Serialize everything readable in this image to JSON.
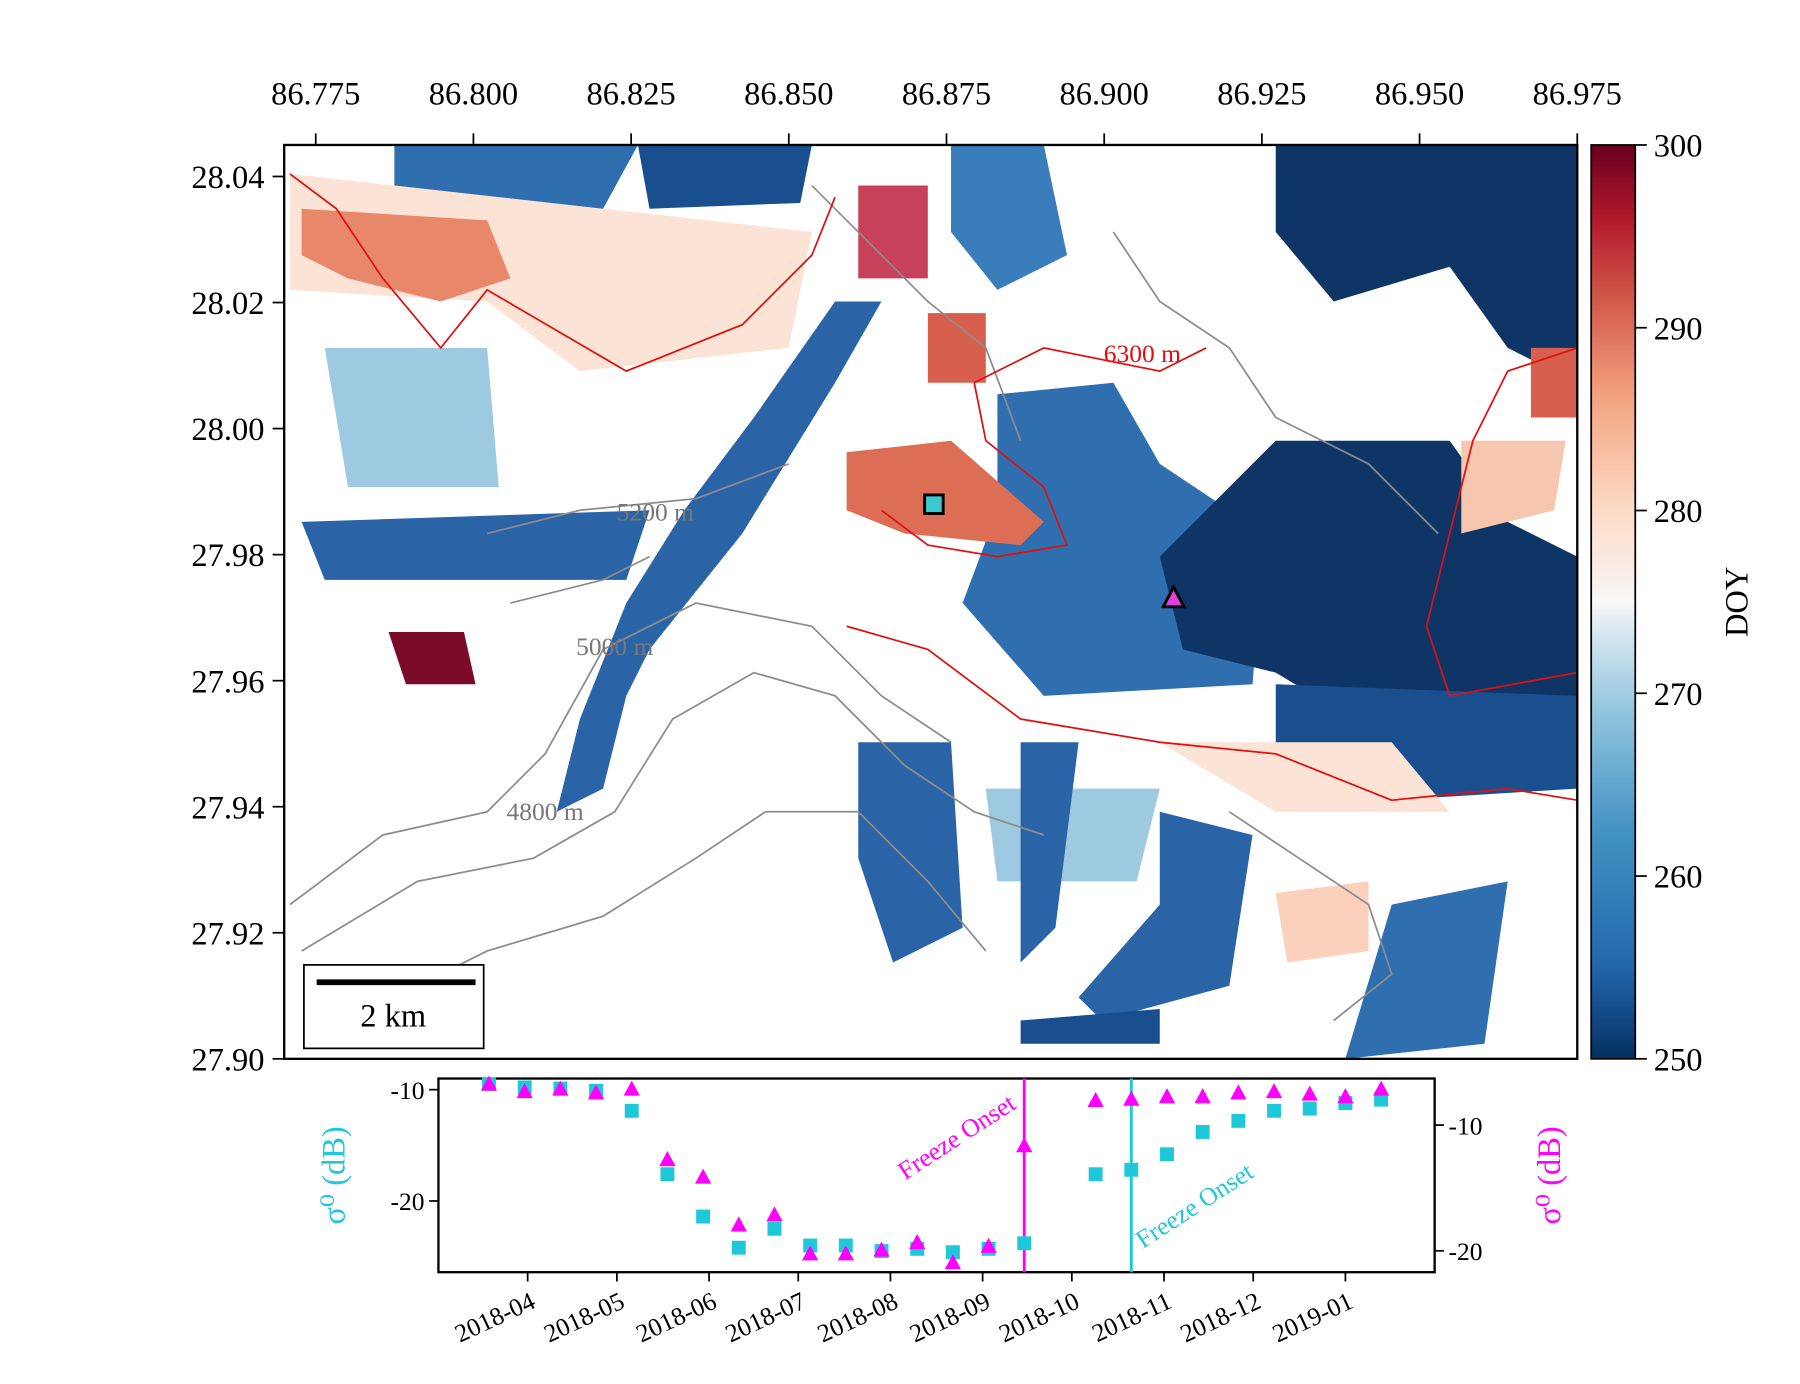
{
  "chart_data": [
    {
      "type": "map",
      "xlim": [
        86.77,
        86.975
      ],
      "ylim": [
        27.9,
        28.045
      ],
      "xticks": [
        {
          "value": 86.775,
          "label": "86.775"
        },
        {
          "value": 86.8,
          "label": "86.800"
        },
        86.825,
        {
          "value": 86.85,
          "label": "86.850"
        },
        86.875,
        {
          "value": 86.9,
          "label": "86.900"
        },
        86.925,
        {
          "value": 86.95,
          "label": "86.950"
        },
        86.975
      ],
      "yticks": [
        {
          "value": 27.9,
          "label": "27.90"
        },
        27.92,
        27.94,
        27.96,
        27.98,
        {
          "value": 28,
          "label": "28.00"
        },
        28.02,
        28.04
      ],
      "colorbar": {
        "label": "DOY",
        "lim": [
          250,
          300
        ],
        "ticks": [
          250,
          260,
          270,
          280,
          290,
          300
        ],
        "colormap": "RdBu_r"
      },
      "scale_bar": "2 km",
      "contour_labels": [
        "6300 m",
        "5200 m",
        "5000 m",
        "4800 m"
      ],
      "markers": [
        {
          "x": 86.873,
          "y": 27.988,
          "shape": "square",
          "color": "#3cc8d0"
        },
        {
          "x": 86.911,
          "y": 27.973,
          "shape": "triangle",
          "color": "#e040e0"
        }
      ]
    },
    {
      "type": "scatter",
      "x": [
        "2018-03-19",
        "2018-03-31",
        "2018-04-12",
        "2018-04-24",
        "2018-05-06",
        "2018-05-18",
        "2018-05-30",
        "2018-06-11",
        "2018-06-23",
        "2018-07-05",
        "2018-07-17",
        "2018-07-29",
        "2018-08-10",
        "2018-08-22",
        "2018-09-03",
        "2018-09-15",
        "2018-10-09",
        "2018-10-21",
        "2018-11-02",
        "2018-11-14",
        "2018-11-26",
        "2018-12-08",
        "2018-12-20",
        "2019-01-01",
        "2019-01-13"
      ],
      "xlim": [
        "2018-03-02",
        "2019-01-31"
      ],
      "xticks": [
        "2018-04",
        "2018-05",
        "2018-06",
        "2018-07",
        "2018-08",
        "2018-09",
        "2018-10",
        "2018-11",
        "2018-12",
        "2019-01"
      ],
      "ylim": [
        -26.4,
        -9
      ],
      "yticks": [
        -10,
        -20
      ],
      "ylabel": "σ⁰ (dB)",
      "y2lim": [
        -21.7,
        -6.3
      ],
      "y2ticks": [
        -10,
        -20
      ],
      "y2label": "σ⁰ (dB)",
      "series": [
        {
          "color": "#1fc8d8",
          "marker": "square",
          "values": [
            -9.5,
            -9.8,
            -9.9,
            -10.1,
            -11.9,
            -17.6,
            -21.4,
            -24.2,
            -22.5,
            -24.0,
            -24.0,
            -24.5,
            -24.3,
            -24.6,
            -24.3,
            -23.8,
            -17.6,
            -17.2,
            -15.8,
            -13.8,
            -12.8,
            -11.9,
            -11.7,
            -11.2,
            -10.9
          ]
        },
        {
          "color": "#ff00ff",
          "marker": "triangle",
          "axis": "y2",
          "values": [
            -6.8,
            -7.4,
            -7.2,
            -7.5,
            -7.2,
            -12.8,
            -14.2,
            -18.0,
            -17.2,
            -20.3,
            -20.3,
            -20.0,
            -19.4,
            -21.0,
            -19.7,
            -11.7,
            -8.1,
            -8.0,
            -7.8,
            -7.8,
            -7.5,
            -7.4,
            -7.6,
            -7.8,
            -7.2
          ]
        }
      ],
      "vlines": [
        {
          "x": "2018-09-15",
          "label": "Freeze Onset",
          "color": "#ff00ff"
        },
        {
          "x": "2018-10-21",
          "label": "Freeze Onset",
          "color": "#1fc8d8"
        }
      ]
    }
  ]
}
